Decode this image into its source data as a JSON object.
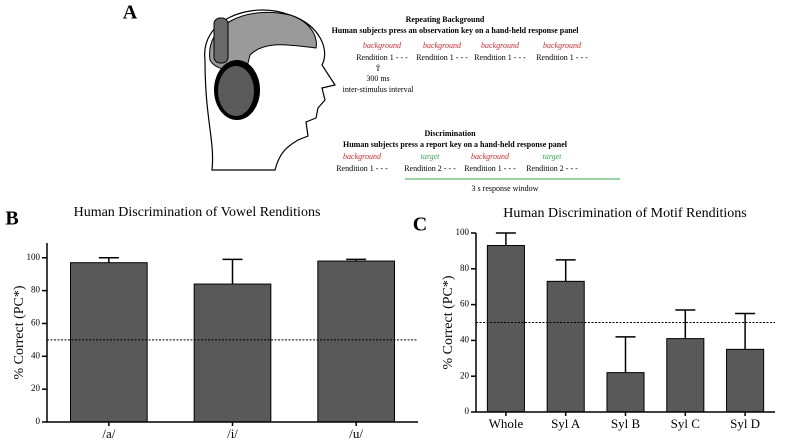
{
  "panel_labels": [
    "A",
    "B",
    "C"
  ],
  "panel_a": {
    "repeating": {
      "title": "Repeating Background",
      "subtitle": "Human subjects press an observation key on a hand-held response panel",
      "items": [
        {
          "label": "background",
          "color": "#e0262b",
          "rendition": "Rendition 1 - - -"
        },
        {
          "label": "background",
          "color": "#e0262b",
          "rendition": "Rendition 1 - - -"
        },
        {
          "label": "background",
          "color": "#e0262b",
          "rendition": "Rendition 1 - - -"
        },
        {
          "label": "background",
          "color": "#e0262b",
          "rendition": "Rendition 1 - - -"
        }
      ],
      "interval": [
        "300 ms",
        "inter-stimulus interval"
      ]
    },
    "discrimination": {
      "title": "Discrimination",
      "subtitle": "Human subjects press a report key on a hand-held response panel",
      "items": [
        {
          "label": "background",
          "color": "#e0262b",
          "rendition": "Rendition 1 - - -"
        },
        {
          "label": "target",
          "color": "#2bb24c",
          "rendition": "Rendition 2 - - -"
        },
        {
          "label": "background",
          "color": "#e0262b",
          "rendition": "Rendition 1 - - -"
        },
        {
          "label": "target",
          "color": "#2bb24c",
          "rendition": "Rendition 2 - - -"
        }
      ],
      "window": "3 s response window",
      "window_color": "#2bb24c"
    }
  },
  "chart_data": [
    {
      "type": "bar",
      "title": "Human Discrimination of Vowel Renditions",
      "y_label": "% Correct (PC*)",
      "categories": [
        "/a/",
        "/i/",
        "/u/"
      ],
      "values": [
        97,
        84,
        98
      ],
      "errors": [
        3,
        15,
        1
      ],
      "color": "#595959",
      "ylim": [
        0,
        109
      ],
      "yticks": [
        0,
        20,
        40,
        60,
        80,
        100
      ],
      "reference_line": 50
    },
    {
      "type": "bar",
      "title": "Human Discrimination of Motif Renditions",
      "y_label": "% Correct (PC*)",
      "categories": [
        "Whole",
        "Syl A",
        "Syl B",
        "Syl C",
        "Syl D"
      ],
      "values": [
        93,
        73,
        22,
        41,
        35
      ],
      "errors": [
        7,
        12,
        20,
        16,
        20
      ],
      "color": "#595959",
      "ylim": [
        0,
        100
      ],
      "yticks": [
        0,
        20,
        40,
        60,
        80,
        100
      ],
      "reference_line": 50
    }
  ]
}
